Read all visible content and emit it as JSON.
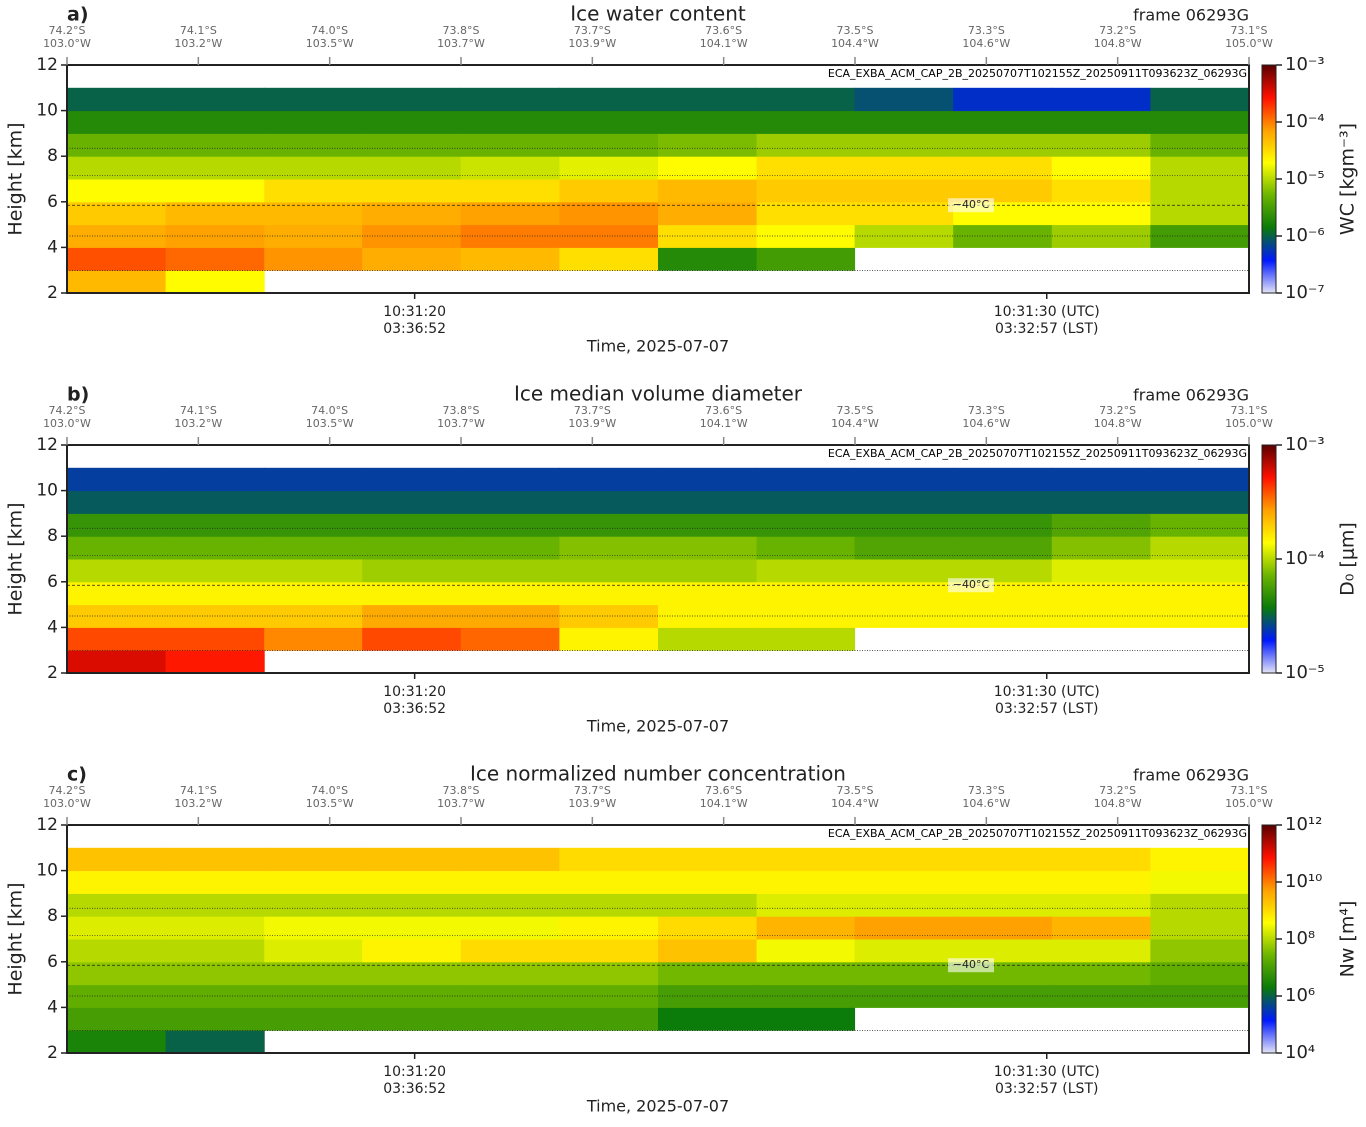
{
  "chart_data": [
    {
      "type": "heatmap",
      "panel_label": "a)",
      "title": "Ice water content",
      "frame": "frame 06293G",
      "file_label": "ECA_EXBA_ACM_CAP_2B_20250707T102155Z_20250911T093623Z_06293G",
      "ylabel": "Height [km]",
      "xlabel": "Time, 2025-07-07",
      "colorbar_label": "WC [kgm⁻³]",
      "top_ticks": [
        {
          "lat": "74.2°S",
          "lon": "103.0°W"
        },
        {
          "lat": "74.1°S",
          "lon": "103.2°W"
        },
        {
          "lat": "74.0°S",
          "lon": "103.5°W"
        },
        {
          "lat": "73.8°S",
          "lon": "103.7°W"
        },
        {
          "lat": "73.7°S",
          "lon": "103.9°W"
        },
        {
          "lat": "73.6°S",
          "lon": "104.1°W"
        },
        {
          "lat": "73.5°S",
          "lon": "104.4°W"
        },
        {
          "lat": "73.3°S",
          "lon": "104.6°W"
        },
        {
          "lat": "73.2°S",
          "lon": "104.8°W"
        },
        {
          "lat": "73.1°S",
          "lon": "105.0°W"
        }
      ],
      "xlim": [
        14.5,
        33.2
      ],
      "xticks": [
        {
          "value": 20,
          "label": "10:31:20",
          "sublabel": "03:36:52"
        },
        {
          "value": 30,
          "label": "10:31:30 (UTC)",
          "sublabel": "03:32:57 (LST)"
        }
      ],
      "ylim": [
        2,
        12
      ],
      "yticks": [
        2,
        4,
        6,
        8,
        10,
        12
      ],
      "x_bins": [
        14.5,
        16.06,
        17.62,
        19.17,
        20.73,
        22.29,
        23.85,
        25.41,
        26.96,
        28.52,
        30.08,
        31.64,
        33.2
      ],
      "y_bins": [
        2,
        3,
        4,
        5,
        6,
        7,
        8,
        9,
        10,
        11
      ],
      "z": [
        [
          5e-05,
          0.00015,
          6e-05,
          4e-05,
          2e-05,
          1e-05,
          5e-06,
          2e-06,
          1e-06
        ],
        [
          2e-05,
          0.00012,
          7e-05,
          5e-05,
          2e-05,
          1e-05,
          5e-06,
          2e-06,
          1e-06
        ],
        [
          null,
          8e-05,
          6e-05,
          5e-05,
          3e-05,
          1e-05,
          5e-06,
          2e-06,
          1e-06
        ],
        [
          null,
          6e-05,
          8e-05,
          6e-05,
          3e-05,
          1e-05,
          5e-06,
          2e-06,
          1e-06
        ],
        [
          null,
          5e-05,
          0.0001,
          7e-05,
          3e-05,
          1.2e-05,
          5e-06,
          2e-06,
          1e-06
        ],
        [
          null,
          3e-05,
          0.0001,
          8e-05,
          4e-05,
          1.5e-05,
          5e-06,
          2e-06,
          1e-06
        ],
        [
          null,
          2e-06,
          3e-05,
          6e-05,
          5e-05,
          2e-05,
          6e-06,
          2e-06,
          1e-06
        ],
        [
          null,
          3e-06,
          2e-05,
          3e-05,
          4e-05,
          3e-05,
          8e-06,
          2e-06,
          1e-06
        ],
        [
          null,
          null,
          1e-05,
          3e-05,
          4e-05,
          3e-05,
          8e-06,
          2e-06,
          8e-07
        ],
        [
          null,
          null,
          5e-06,
          2e-05,
          4e-05,
          3e-05,
          8e-06,
          2e-06,
          5e-07
        ],
        [
          null,
          null,
          8e-06,
          2e-05,
          3e-05,
          2e-05,
          8e-06,
          2e-06,
          5e-07
        ],
        [
          null,
          null,
          3e-06,
          1e-05,
          1e-05,
          1e-05,
          5e-06,
          2e-06,
          1e-06
        ]
      ],
      "clim": [
        1e-07,
        0.001
      ],
      "log_color": true,
      "cticks": [
        {
          "value": 1e-07,
          "label": "10⁻⁷"
        },
        {
          "value": 1e-06,
          "label": "10⁻⁶"
        },
        {
          "value": 1e-05,
          "label": "10⁻⁵"
        },
        {
          "value": 0.0001,
          "label": "10⁻⁴"
        },
        {
          "value": 0.001,
          "label": "10⁻³"
        }
      ],
      "colormap": [
        "#e4e4f6",
        "#0018ff",
        "#0a7a0a",
        "#6cb400",
        "#ffff00",
        "#ffa000",
        "#ff1000",
        "#5a0000"
      ],
      "isotherm_heights": [
        2.98,
        4.5,
        5.85,
        7.15,
        8.35
      ],
      "isotherm_label": "−40°C",
      "isotherm_label_index": 2
    },
    {
      "type": "heatmap",
      "panel_label": "b)",
      "title": "Ice median volume diameter",
      "frame": "frame 06293G",
      "file_label": "ECA_EXBA_ACM_CAP_2B_20250707T102155Z_20250911T093623Z_06293G",
      "ylabel": "Height [km]",
      "xlabel": "Time, 2025-07-07",
      "colorbar_label": "D₀ [μm]",
      "top_ticks": [
        {
          "lat": "74.2°S",
          "lon": "103.0°W"
        },
        {
          "lat": "74.1°S",
          "lon": "103.2°W"
        },
        {
          "lat": "74.0°S",
          "lon": "103.5°W"
        },
        {
          "lat": "73.8°S",
          "lon": "103.7°W"
        },
        {
          "lat": "73.7°S",
          "lon": "103.9°W"
        },
        {
          "lat": "73.6°S",
          "lon": "104.1°W"
        },
        {
          "lat": "73.5°S",
          "lon": "104.4°W"
        },
        {
          "lat": "73.3°S",
          "lon": "104.6°W"
        },
        {
          "lat": "73.2°S",
          "lon": "104.8°W"
        },
        {
          "lat": "73.1°S",
          "lon": "105.0°W"
        }
      ],
      "xlim": [
        14.5,
        33.2
      ],
      "xticks": [
        {
          "value": 20,
          "label": "10:31:20",
          "sublabel": "03:36:52"
        },
        {
          "value": 30,
          "label": "10:31:30 (UTC)",
          "sublabel": "03:32:57 (LST)"
        }
      ],
      "ylim": [
        2,
        12
      ],
      "yticks": [
        2,
        4,
        6,
        8,
        10,
        12
      ],
      "x_bins": [
        14.5,
        16.06,
        17.62,
        19.17,
        20.73,
        22.29,
        23.85,
        25.41,
        26.96,
        28.52,
        30.08,
        31.64,
        33.2
      ],
      "y_bins": [
        2,
        3,
        4,
        5,
        6,
        7,
        8,
        9,
        10,
        11
      ],
      "z": [
        [
          0.0006,
          0.0004,
          0.0002,
          0.00015,
          0.0001,
          7e-05,
          5e-05,
          3e-05,
          2.5e-05
        ],
        [
          0.0005,
          0.0004,
          0.0002,
          0.00015,
          0.0001,
          7e-05,
          5e-05,
          3e-05,
          2.5e-05
        ],
        [
          null,
          0.0003,
          0.0002,
          0.00015,
          0.0001,
          7e-05,
          5e-05,
          3e-05,
          2.5e-05
        ],
        [
          null,
          0.0004,
          0.00025,
          0.00015,
          9e-05,
          7e-05,
          5e-05,
          3e-05,
          2.5e-05
        ],
        [
          null,
          0.00035,
          0.00025,
          0.00015,
          9e-05,
          7e-05,
          5e-05,
          3e-05,
          2.5e-05
        ],
        [
          null,
          0.00015,
          0.0002,
          0.00015,
          9e-05,
          8e-05,
          5e-05,
          3e-05,
          2.5e-05
        ],
        [
          null,
          0.0001,
          0.00015,
          0.00015,
          9e-05,
          8e-05,
          5e-05,
          3e-05,
          2.5e-05
        ],
        [
          null,
          0.0001,
          0.00015,
          0.00015,
          0.0001,
          7e-05,
          5e-05,
          3e-05,
          2.5e-05
        ],
        [
          null,
          null,
          0.00015,
          0.00015,
          0.0001,
          6e-05,
          5e-05,
          3e-05,
          2.5e-05
        ],
        [
          null,
          null,
          0.00015,
          0.00015,
          0.0001,
          6e-05,
          5e-05,
          3e-05,
          2.5e-05
        ],
        [
          null,
          null,
          0.00015,
          0.00015,
          0.00012,
          8e-05,
          6e-05,
          3e-05,
          2.5e-05
        ],
        [
          null,
          null,
          0.00015,
          0.00015,
          0.00012,
          0.0001,
          7e-05,
          3e-05,
          2.5e-05
        ]
      ],
      "clim": [
        1e-05,
        0.001
      ],
      "log_color": true,
      "cticks": [
        {
          "value": 1e-05,
          "label": "10⁻⁵"
        },
        {
          "value": 0.0001,
          "label": "10⁻⁴"
        },
        {
          "value": 0.001,
          "label": "10⁻³"
        }
      ],
      "colormap": [
        "#e4e4f6",
        "#0018ff",
        "#0a7a0a",
        "#6cb400",
        "#ffff00",
        "#ffa000",
        "#ff1000",
        "#5a0000"
      ],
      "isotherm_heights": [
        2.98,
        4.5,
        5.85,
        7.15,
        8.35
      ],
      "isotherm_label": "−40°C",
      "isotherm_label_index": 2
    },
    {
      "type": "heatmap",
      "panel_label": "c)",
      "title": "Ice normalized number concentration",
      "frame": "frame 06293G",
      "file_label": "ECA_EXBA_ACM_CAP_2B_20250707T102155Z_20250911T093623Z_06293G",
      "ylabel": "Height [km]",
      "xlabel": "Time, 2025-07-07",
      "colorbar_label": "Nw [m⁴]",
      "top_ticks": [
        {
          "lat": "74.2°S",
          "lon": "103.0°W"
        },
        {
          "lat": "74.1°S",
          "lon": "103.2°W"
        },
        {
          "lat": "74.0°S",
          "lon": "103.5°W"
        },
        {
          "lat": "73.8°S",
          "lon": "103.7°W"
        },
        {
          "lat": "73.7°S",
          "lon": "103.9°W"
        },
        {
          "lat": "73.6°S",
          "lon": "104.1°W"
        },
        {
          "lat": "73.5°S",
          "lon": "104.4°W"
        },
        {
          "lat": "73.3°S",
          "lon": "104.6°W"
        },
        {
          "lat": "73.2°S",
          "lon": "104.8°W"
        },
        {
          "lat": "73.1°S",
          "lon": "105.0°W"
        }
      ],
      "xlim": [
        14.5,
        33.2
      ],
      "xticks": [
        {
          "value": 20,
          "label": "10:31:20",
          "sublabel": "03:36:52"
        },
        {
          "value": 30,
          "label": "10:31:30 (UTC)",
          "sublabel": "03:32:57 (LST)"
        }
      ],
      "ylim": [
        2,
        12
      ],
      "yticks": [
        2,
        4,
        6,
        8,
        10,
        12
      ],
      "x_bins": [
        14.5,
        16.06,
        17.62,
        19.17,
        20.73,
        22.29,
        23.85,
        25.41,
        26.96,
        28.52,
        30.08,
        31.64,
        33.2
      ],
      "y_bins": [
        2,
        3,
        4,
        5,
        6,
        7,
        8,
        9,
        10,
        11
      ],
      "z": [
        [
          3000000.0,
          10000000.0,
          20000000.0,
          50000000.0,
          100000000.0,
          200000000.0,
          100000000.0,
          500000000.0,
          2000000000.0
        ],
        [
          1000000.0,
          10000000.0,
          20000000.0,
          50000000.0,
          100000000.0,
          200000000.0,
          100000000.0,
          500000000.0,
          2000000000.0
        ],
        [
          null,
          10000000.0,
          20000000.0,
          50000000.0,
          200000000.0,
          300000000.0,
          100000000.0,
          500000000.0,
          2000000000.0
        ],
        [
          null,
          10000000.0,
          20000000.0,
          50000000.0,
          500000000.0,
          300000000.0,
          100000000.0,
          500000000.0,
          2000000000.0
        ],
        [
          null,
          10000000.0,
          20000000.0,
          50000000.0,
          1000000000.0,
          300000000.0,
          100000000.0,
          500000000.0,
          2000000000.0
        ],
        [
          null,
          10000000.0,
          20000000.0,
          50000000.0,
          1000000000.0,
          500000000.0,
          100000000.0,
          500000000.0,
          1000000000.0
        ],
        [
          null,
          2000000.0,
          10000000.0,
          30000000.0,
          2000000000.0,
          1000000000.0,
          100000000.0,
          500000000.0,
          1000000000.0
        ],
        [
          null,
          2000000.0,
          10000000.0,
          30000000.0,
          300000000.0,
          3000000000.0,
          200000000.0,
          500000000.0,
          1000000000.0
        ],
        [
          null,
          null,
          10000000.0,
          30000000.0,
          200000000.0,
          5000000000.0,
          200000000.0,
          500000000.0,
          1000000000.0
        ],
        [
          null,
          null,
          10000000.0,
          30000000.0,
          200000000.0,
          5000000000.0,
          200000000.0,
          500000000.0,
          1000000000.0
        ],
        [
          null,
          null,
          10000000.0,
          30000000.0,
          200000000.0,
          3000000000.0,
          200000000.0,
          500000000.0,
          1000000000.0
        ],
        [
          null,
          null,
          10000000.0,
          20000000.0,
          50000000.0,
          100000000.0,
          100000000.0,
          300000000.0,
          500000000.0
        ]
      ],
      "clim": [
        10000.0,
        1000000000000.0
      ],
      "log_color": true,
      "cticks": [
        {
          "value": 10000.0,
          "label": "10⁴"
        },
        {
          "value": 1000000.0,
          "label": "10⁶"
        },
        {
          "value": 100000000.0,
          "label": "10⁸"
        },
        {
          "value": 10000000000.0,
          "label": "10¹⁰"
        },
        {
          "value": 1000000000000.0,
          "label": "10¹²"
        }
      ],
      "colormap": [
        "#e4e4f6",
        "#0018ff",
        "#0a7a0a",
        "#6cb400",
        "#ffff00",
        "#ffa000",
        "#ff1000",
        "#5a0000"
      ],
      "isotherm_heights": [
        2.98,
        4.5,
        5.85,
        7.15,
        8.35
      ],
      "isotherm_label": "−40°C",
      "isotherm_label_index": 2
    }
  ]
}
